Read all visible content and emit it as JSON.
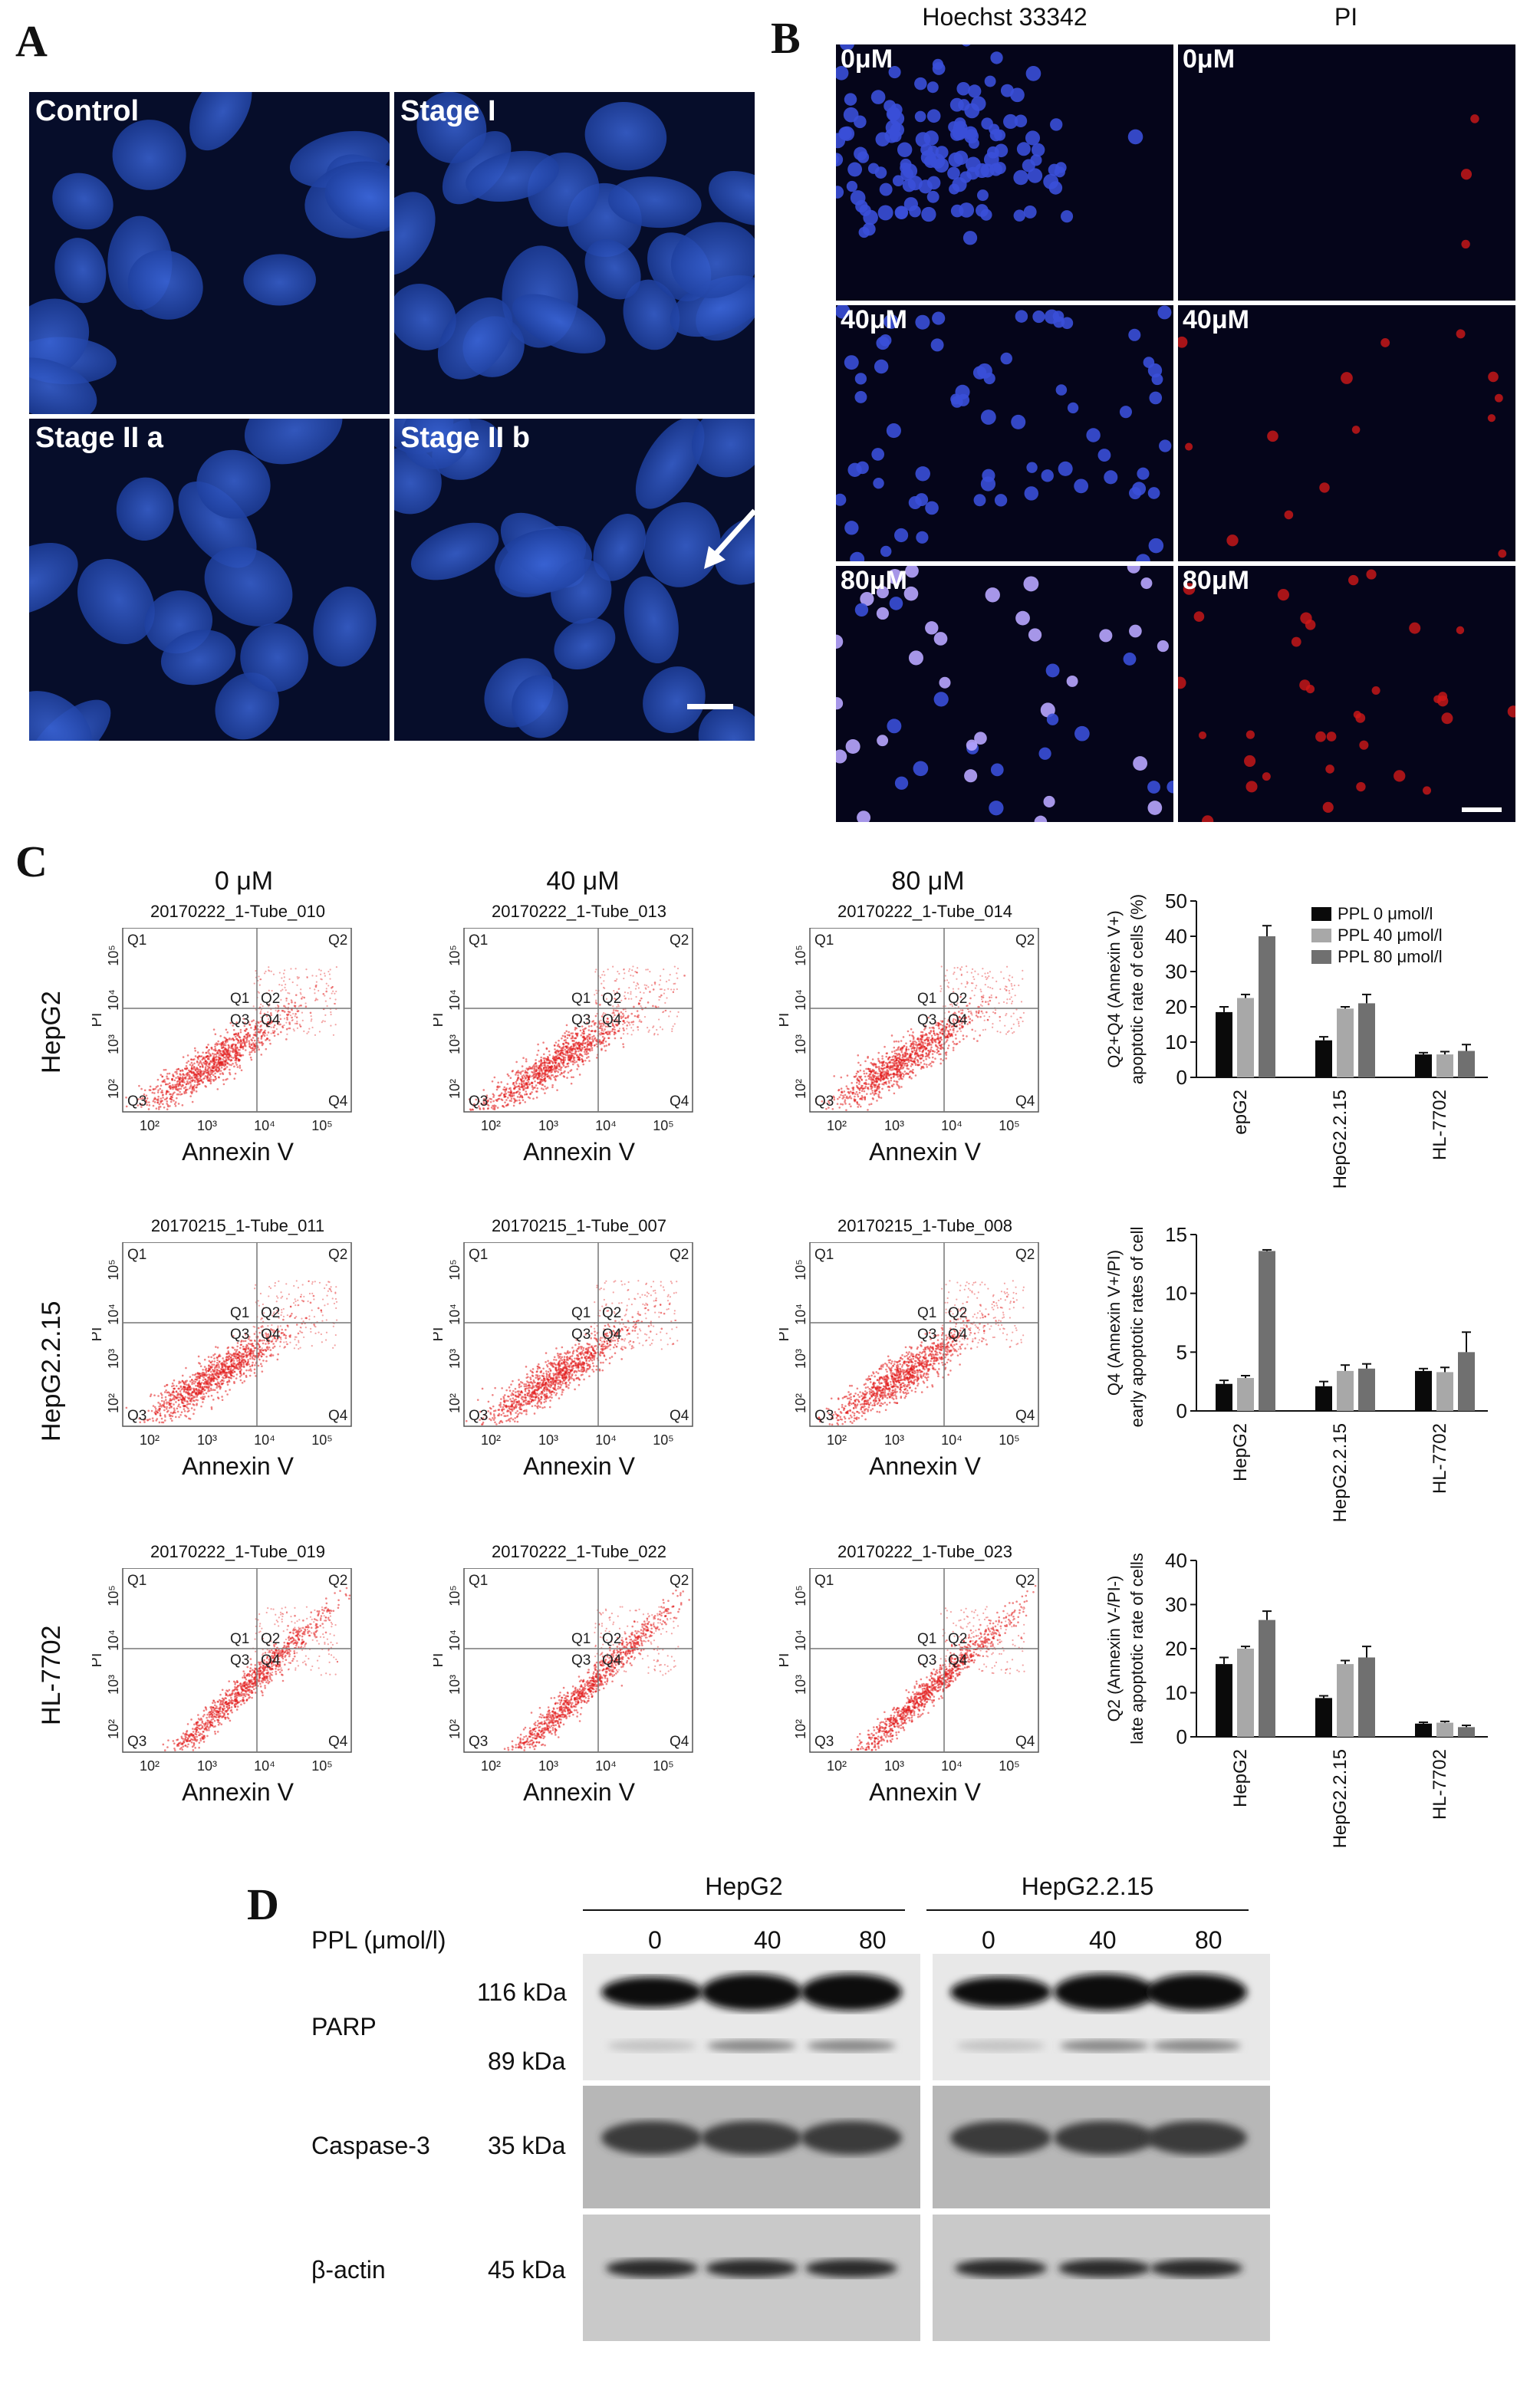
{
  "panels": {
    "A": {
      "letter": "A",
      "tiles": [
        {
          "label": "Control"
        },
        {
          "label": "Stage I"
        },
        {
          "label": "Stage II a"
        },
        {
          "label": "Stage II b"
        }
      ]
    },
    "B": {
      "letter": "B",
      "col_headers": [
        "Hoechst 33342",
        "PI"
      ],
      "doses": [
        "0μM",
        "40μM",
        "80μM"
      ]
    },
    "C": {
      "letter": "C",
      "doses": [
        "0 μM",
        "40 μM",
        "80 μM"
      ],
      "row_labels": [
        "HepG2",
        "HepG2.2.15",
        "HL-7702"
      ],
      "files": [
        [
          "20170222_1-Tube_010",
          "20170222_1-Tube_013",
          "20170222_1-Tube_014"
        ],
        [
          "20170215_1-Tube_011",
          "20170215_1-Tube_007",
          "20170215_1-Tube_008"
        ],
        [
          "20170222_1-Tube_019",
          "20170222_1-Tube_022",
          "20170222_1-Tube_023"
        ]
      ],
      "xlabel": "Annexin V",
      "ylabel": "PI",
      "quadrants": [
        "Q1",
        "Q2",
        "Q3",
        "Q4"
      ],
      "log_ticks": [
        "10²",
        "10³",
        "10⁴",
        "10⁵"
      ]
    },
    "D": {
      "letter": "D",
      "groups": [
        "HepG2",
        "HepG2.2.15"
      ],
      "ppl_label": "PPL (μmol/l)",
      "conc": [
        "0",
        "40",
        "80",
        "0",
        "40",
        "80"
      ],
      "proteins": [
        {
          "name": "PARP",
          "kda": [
            "116 kDa",
            "89 kDa"
          ]
        },
        {
          "name": "Caspase-3",
          "kda": [
            "35 kDa"
          ]
        },
        {
          "name": "β-actin",
          "kda": [
            "45 kDa"
          ]
        }
      ]
    }
  },
  "chart_data": [
    {
      "type": "bar",
      "ylabel": "Q2+Q4 (Annexin V+)\napoptotic rate of cells (%)",
      "categories": [
        "epG2",
        "HepG2.2.15",
        "HL-7702"
      ],
      "ylim": [
        0,
        50
      ],
      "yticks": [
        0,
        10,
        20,
        30,
        40,
        50
      ],
      "legend": "top-right",
      "series": [
        {
          "name": "PPL 0 μmol/l",
          "values": [
            18.5,
            10.5,
            6.5
          ],
          "err": [
            1.5,
            1.0,
            0.5
          ]
        },
        {
          "name": "PPL 40 μmol/l",
          "values": [
            22.5,
            19.5,
            6.5
          ],
          "err": [
            1.0,
            0.5,
            0.8
          ]
        },
        {
          "name": "PPL 80 μmol/l",
          "values": [
            40.0,
            21.0,
            7.5
          ],
          "err": [
            3.0,
            2.5,
            1.8
          ]
        }
      ]
    },
    {
      "type": "bar",
      "ylabel": "Q4 (Annexin V+/PI)\nearly apoptotic rates of cells",
      "categories": [
        "HepG2",
        "HepG2.2.15",
        "HL-7702"
      ],
      "ylim": [
        0,
        15
      ],
      "yticks": [
        0,
        5,
        10,
        15
      ],
      "series": [
        {
          "name": "PPL 0 μmol/l",
          "values": [
            2.3,
            2.1,
            3.4
          ],
          "err": [
            0.3,
            0.4,
            0.2
          ]
        },
        {
          "name": "PPL 40 μmol/l",
          "values": [
            2.8,
            3.4,
            3.3
          ],
          "err": [
            0.2,
            0.5,
            0.4
          ]
        },
        {
          "name": "PPL 80 μmol/l",
          "values": [
            13.6,
            3.6,
            5.0
          ],
          "err": [
            0.1,
            0.4,
            1.7
          ]
        }
      ]
    },
    {
      "type": "bar",
      "ylabel": "Q2 (Annexin V-/PI-)\nlate apoptotic rate of cells",
      "categories": [
        "HepG2",
        "HepG2.2.15",
        "HL-7702"
      ],
      "ylim": [
        0,
        40
      ],
      "yticks": [
        0,
        10,
        20,
        30,
        40
      ],
      "series": [
        {
          "name": "PPL 0 μmol/l",
          "values": [
            16.5,
            8.8,
            3.0
          ],
          "err": [
            1.5,
            0.5,
            0.3
          ]
        },
        {
          "name": "PPL 40 μmol/l",
          "values": [
            20.0,
            16.5,
            3.2
          ],
          "err": [
            0.5,
            0.8,
            0.3
          ]
        },
        {
          "name": "PPL 80 μmol/l",
          "values": [
            26.5,
            18.0,
            2.2
          ],
          "err": [
            2.0,
            2.5,
            0.4
          ]
        }
      ]
    }
  ],
  "colors": {
    "bar_0": "#0a0a0a",
    "bar_40": "#a8a8a8",
    "bar_80": "#707070",
    "nucleus": "#2b4fb8",
    "pi_red": "#d01818"
  }
}
